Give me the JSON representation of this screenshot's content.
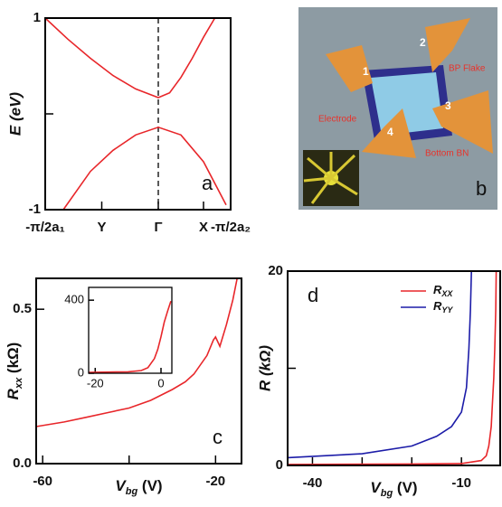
{
  "chart_data": [
    {
      "type": "line",
      "panel_label": "a",
      "y_label": "E (eV)",
      "xlim": [
        -1,
        0.64
      ],
      "ylim": [
        -1,
        1
      ],
      "yticks": [
        1,
        -1
      ],
      "minor_yticks": [
        0
      ],
      "xticks": [
        {
          "value": -1,
          "label": "-π/2a₁"
        },
        {
          "value": -0.5,
          "label": "Y"
        },
        {
          "value": 0,
          "label": "Γ"
        },
        {
          "value": 0.4,
          "label": "X"
        },
        {
          "value": 0.64,
          "label": "-π/2a₂"
        }
      ],
      "dashed_x": 0,
      "series": [
        {
          "color": "#e8262a",
          "x": [
            -1,
            -0.8,
            -0.6,
            -0.4,
            -0.2,
            0,
            0.1,
            0.2,
            0.3,
            0.4,
            0.5
          ],
          "y": [
            1.0,
            0.78,
            0.58,
            0.4,
            0.26,
            0.17,
            0.22,
            0.38,
            0.58,
            0.8,
            1.0
          ]
        },
        {
          "color": "#e8262a",
          "x": [
            -0.84,
            -0.6,
            -0.4,
            -0.2,
            0,
            0.2,
            0.4,
            0.6
          ],
          "y": [
            -1,
            -0.6,
            -0.38,
            -0.22,
            -0.14,
            -0.22,
            -0.5,
            -0.95
          ]
        }
      ]
    },
    {
      "type": "line",
      "panel_label": "c",
      "y_label": {
        "main": "R",
        "sub": "xx",
        "unit": " (kΩ)"
      },
      "x_label": {
        "main": "V",
        "sub": "bg",
        "unit": " (V)"
      },
      "xlim": [
        -61.5,
        -14
      ],
      "ylim": [
        0,
        0.6
      ],
      "xticks": [
        -60,
        -20
      ],
      "minor_xticks": [
        -40
      ],
      "yticks": [
        {
          "value": 0,
          "label": "0.0"
        },
        0.5
      ],
      "series": [
        {
          "color": "#e8262a",
          "x": [
            -61.5,
            -55,
            -50,
            -45,
            -40,
            -35,
            -30,
            -27,
            -25,
            -22,
            -20.5,
            -20,
            -19,
            -17.5,
            -16,
            -15
          ],
          "y": [
            0.12,
            0.135,
            0.15,
            0.165,
            0.18,
            0.205,
            0.24,
            0.265,
            0.29,
            0.35,
            0.4,
            0.41,
            0.38,
            0.45,
            0.53,
            0.6
          ]
        }
      ]
    },
    {
      "type": "line",
      "inset": true,
      "xlim": [
        -22,
        3.3
      ],
      "ylim": [
        0,
        470
      ],
      "xticks": [
        -20,
        0
      ],
      "yticks": [
        0,
        400
      ],
      "series": [
        {
          "color": "#e8262a",
          "x": [
            -22,
            -10,
            -6,
            -4,
            -2,
            -1,
            0,
            1,
            2,
            3
          ],
          "y": [
            5,
            8,
            15,
            30,
            80,
            130,
            200,
            280,
            340,
            395
          ]
        }
      ]
    },
    {
      "type": "line",
      "panel_label": "d",
      "y_label": "R (kΩ)",
      "x_label": {
        "main": "V",
        "sub": "bg",
        "unit": " (V)"
      },
      "xlim": [
        -45,
        -2.2
      ],
      "ylim": [
        0,
        20
      ],
      "xticks": [
        -40,
        -10
      ],
      "minor_xticks": [
        -30,
        -20
      ],
      "yticks": [
        0,
        20
      ],
      "minor_yticks": [
        10
      ],
      "legend": "top-right",
      "series": [
        {
          "name": "R",
          "subscript": "XX",
          "color": "#e8262a",
          "x": [
            -45,
            -20,
            -10,
            -6,
            -5,
            -4.5,
            -4,
            -3.8,
            -3.5,
            -3.3,
            -3.1,
            -3
          ],
          "y": [
            0.1,
            0.15,
            0.2,
            0.5,
            1.0,
            2,
            4,
            6,
            9,
            12,
            16,
            20
          ]
        },
        {
          "name": "R",
          "subscript": "YY",
          "color": "#1c1ca8",
          "x": [
            -45,
            -30,
            -20,
            -15,
            -12,
            -10,
            -9,
            -8.5,
            -8.2,
            -8
          ],
          "y": [
            0.8,
            1.2,
            2,
            3,
            4,
            5.5,
            8,
            12,
            16,
            20
          ]
        }
      ]
    }
  ],
  "image_b": {
    "panel_label": "b",
    "electrodes": [
      "1",
      "2",
      "3",
      "4"
    ],
    "labels": [
      "BP Flake",
      "Electrode",
      "Bottom BN"
    ]
  }
}
